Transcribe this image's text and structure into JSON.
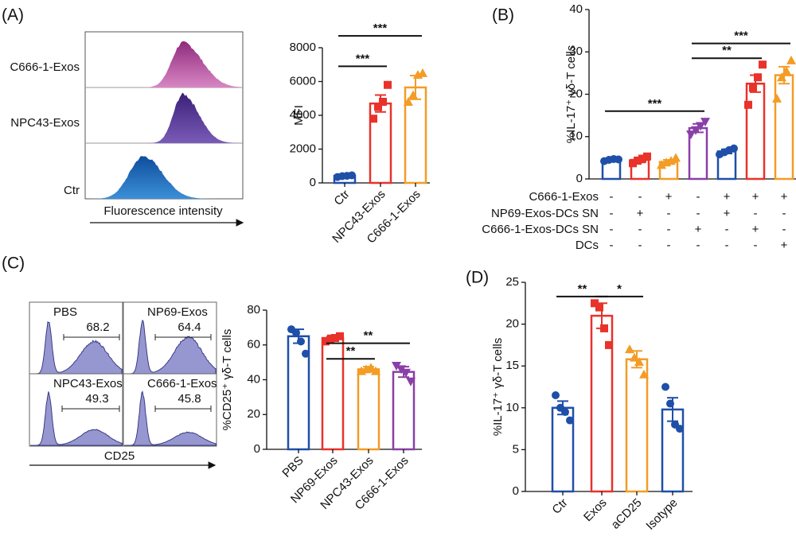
{
  "panel_labels": [
    "(A)",
    "(B)",
    "(C)",
    "(D)"
  ],
  "flow_a": {
    "rows": [
      "C666-1-Exos",
      "NPC43-Exos",
      "Ctr"
    ],
    "axis_label": "Fluorescence intensity"
  },
  "flow_c": {
    "panels": [
      {
        "title": "PBS",
        "gate": "68.2"
      },
      {
        "title": "NP69-Exos",
        "gate": "64.4"
      },
      {
        "title": "NPC43-Exos",
        "gate": "49.3"
      },
      {
        "title": "C666-1-Exos",
        "gate": "45.8"
      }
    ],
    "axis_label": "CD25"
  },
  "chart_data": [
    {
      "type": "bar",
      "ylabel": "MFI",
      "categories": [
        "Ctr",
        "NPC43-Exos",
        "C666-1-Exos"
      ],
      "values": [
        420,
        4700,
        5650
      ],
      "errors": [
        100,
        500,
        700
      ],
      "points": [
        [
          350,
          400,
          420,
          450
        ],
        [
          3800,
          4500,
          4800,
          5800
        ],
        [
          4800,
          5200,
          6400,
          6500
        ]
      ],
      "colors": [
        "#1f4fa8",
        "#e8322a",
        "#f39c26"
      ],
      "markers": [
        "circle",
        "square",
        "triangle"
      ],
      "ylim": [
        0,
        8000
      ],
      "yticks": [
        0,
        2000,
        4000,
        6000,
        8000
      ],
      "annotations": [
        {
          "text": "***",
          "from": 0,
          "to": 1,
          "y": 6900
        },
        {
          "text": "***",
          "from": 0,
          "to": 2,
          "y": 8700
        }
      ]
    },
    {
      "type": "bar",
      "ylabel": "%IL-17⁺ γδ-T cells",
      "categories": [
        null,
        null,
        null,
        null,
        null,
        null,
        null
      ],
      "values": [
        4.5,
        4.5,
        4,
        12,
        6.5,
        22.5,
        24.5
      ],
      "errors": [
        0.3,
        0.6,
        0.5,
        1,
        0.5,
        2,
        2
      ],
      "points": [
        [
          4.2,
          4.5,
          4.7,
          4.6
        ],
        [
          3.7,
          4.3,
          4.8,
          5.3
        ],
        [
          3.3,
          3.9,
          4.3,
          5
        ],
        [
          10.5,
          11.5,
          12.5,
          13.5
        ],
        [
          5.8,
          6.3,
          6.8,
          7.2
        ],
        [
          17.5,
          21.5,
          24,
          27
        ],
        [
          19,
          24,
          25.5,
          28
        ]
      ],
      "colors": [
        "#1f4fa8",
        "#e8322a",
        "#f39c26",
        "#8a3fa8",
        "#1f4fa8",
        "#e8322a",
        "#f39c26"
      ],
      "markers": [
        "circle",
        "square",
        "triangle",
        "triangle-down",
        "circle",
        "square",
        "triangle"
      ],
      "ylim": [
        0,
        40
      ],
      "yticks": [
        0,
        10,
        20,
        30,
        40
      ],
      "conditions": [
        {
          "label": "C666-1-Exos",
          "signs": [
            "-",
            "-",
            "+",
            "-",
            "+",
            "+",
            "+"
          ]
        },
        {
          "label": "NP69-Exos-DCs SN",
          "signs": [
            "-",
            "+",
            "-",
            "-",
            "+",
            "-",
            "-"
          ]
        },
        {
          "label": "C666-1-Exos-DCs SN",
          "signs": [
            "-",
            "-",
            "-",
            "+",
            "-",
            "+",
            "-"
          ]
        },
        {
          "label": "DCs",
          "signs": [
            "-",
            "-",
            "-",
            "-",
            "-",
            "-",
            "+"
          ]
        }
      ],
      "annotations": [
        {
          "text": "***",
          "from": 0,
          "to": 3,
          "y": 16
        },
        {
          "text": "**",
          "from": 3,
          "to": 5,
          "y": 28.5
        },
        {
          "text": "***",
          "from": 3,
          "to": 6,
          "y": 32
        }
      ]
    },
    {
      "type": "bar",
      "ylabel": "%CD25⁺ γδ-T cells",
      "categories": [
        "PBS",
        "NP69-Exos",
        "NPC43-Exos",
        "C666-1-Exos"
      ],
      "values": [
        65,
        64,
        46,
        44.5
      ],
      "errors": [
        4,
        1.5,
        1.5,
        3
      ],
      "points": [
        [
          69,
          67,
          62,
          55
        ],
        [
          62,
          63,
          64,
          65
        ],
        [
          45,
          46,
          47,
          45
        ],
        [
          48,
          46,
          44,
          39
        ]
      ],
      "colors": [
        "#1f4fa8",
        "#e8322a",
        "#f39c26",
        "#8a3fa8"
      ],
      "markers": [
        "circle",
        "square",
        "triangle",
        "triangle-down"
      ],
      "ylim": [
        0,
        80
      ],
      "yticks": [
        0,
        20,
        40,
        60,
        80
      ],
      "annotations": [
        {
          "text": "**",
          "from": 1,
          "to": 2,
          "y": 52
        },
        {
          "text": "**",
          "from": 1,
          "to": 3,
          "y": 61
        }
      ]
    },
    {
      "type": "bar",
      "ylabel": "%IL-17⁺ γδ-T cells",
      "categories": [
        "Ctr",
        "Exos",
        "aCD25",
        "Isotype"
      ],
      "values": [
        10,
        21,
        15.8,
        9.8
      ],
      "errors": [
        0.8,
        1.5,
        1,
        1.4
      ],
      "points": [
        [
          11.5,
          10,
          9.5,
          8.5
        ],
        [
          22.5,
          22,
          19.5,
          17.5
        ],
        [
          17,
          16,
          15.5,
          14
        ],
        [
          12.5,
          10.5,
          8,
          7.5
        ]
      ],
      "colors": [
        "#1f4fa8",
        "#e8322a",
        "#f39c26",
        "#1f4fa8"
      ],
      "markers": [
        "circle",
        "square",
        "triangle",
        "circle"
      ],
      "ylim": [
        0,
        25
      ],
      "yticks": [
        0,
        5,
        10,
        15,
        20,
        25
      ],
      "annotations": [
        {
          "text": "**",
          "from": 0,
          "to": 1,
          "y": 23.3
        },
        {
          "text": "*",
          "from": 1,
          "to": 2,
          "y": 23.3
        }
      ]
    }
  ]
}
